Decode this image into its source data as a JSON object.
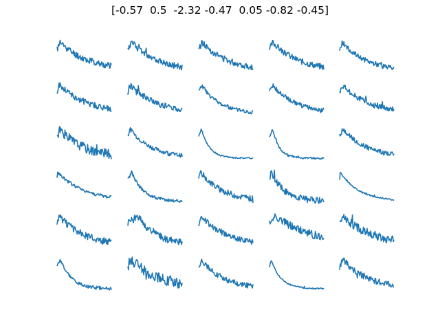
{
  "figure": {
    "title": "[-0.57  0.5  -2.32 -0.47  0.05 -0.82 -0.45]",
    "line_color": "#1f77b4"
  },
  "chart_data": {
    "type": "line",
    "title": "[-0.57  0.5  -2.32 -0.47  0.05 -0.82 -0.45]",
    "layout": {
      "rows": 6,
      "cols": 5
    },
    "axes": "off",
    "grid": false,
    "legend": "none",
    "ylim": [
      0,
      1
    ],
    "points_per_panel": 90,
    "panels": [
      {
        "row": 0,
        "col": 0,
        "noise": 0.1,
        "peak": 0.05,
        "decay": 0.55,
        "seed": 11
      },
      {
        "row": 0,
        "col": 1,
        "noise": 0.09,
        "peak": 0.07,
        "decay": 0.5,
        "seed": 12
      },
      {
        "row": 0,
        "col": 2,
        "noise": 0.09,
        "peak": 0.06,
        "decay": 0.5,
        "seed": 13
      },
      {
        "row": 0,
        "col": 3,
        "noise": 0.09,
        "peak": 0.06,
        "decay": 0.5,
        "seed": 14
      },
      {
        "row": 0,
        "col": 4,
        "noise": 0.07,
        "peak": 0.05,
        "decay": 0.45,
        "seed": 15
      },
      {
        "row": 1,
        "col": 0,
        "noise": 0.09,
        "peak": 0.04,
        "decay": 0.55,
        "seed": 21
      },
      {
        "row": 1,
        "col": 1,
        "noise": 0.09,
        "peak": 0.05,
        "decay": 0.5,
        "seed": 22
      },
      {
        "row": 1,
        "col": 2,
        "noise": 0.06,
        "peak": 0.05,
        "decay": 0.35,
        "seed": 23
      },
      {
        "row": 1,
        "col": 3,
        "noise": 0.07,
        "peak": 0.05,
        "decay": 0.45,
        "seed": 24
      },
      {
        "row": 1,
        "col": 4,
        "noise": 0.08,
        "peak": 0.05,
        "decay": 0.5,
        "seed": 25
      },
      {
        "row": 2,
        "col": 0,
        "noise": 0.14,
        "peak": 0.05,
        "decay": 0.45,
        "seed": 31
      },
      {
        "row": 2,
        "col": 1,
        "noise": 0.06,
        "peak": 0.04,
        "decay": 0.4,
        "seed": 32
      },
      {
        "row": 2,
        "col": 2,
        "noise": 0.02,
        "peak": 0.05,
        "decay": 0.15,
        "seed": 33
      },
      {
        "row": 2,
        "col": 3,
        "noise": 0.03,
        "peak": 0.06,
        "decay": 0.12,
        "seed": 34
      },
      {
        "row": 2,
        "col": 4,
        "noise": 0.07,
        "peak": 0.06,
        "decay": 0.45,
        "seed": 35
      },
      {
        "row": 3,
        "col": 0,
        "noise": 0.05,
        "peak": 0.01,
        "decay": 0.5,
        "seed": 41
      },
      {
        "row": 3,
        "col": 1,
        "noise": 0.05,
        "peak": 0.07,
        "decay": 0.22,
        "seed": 42
      },
      {
        "row": 3,
        "col": 2,
        "noise": 0.09,
        "peak": 0.04,
        "decay": 0.4,
        "seed": 43
      },
      {
        "row": 3,
        "col": 3,
        "noise": 0.1,
        "peak": 0.03,
        "decay": 0.25,
        "seed": 44
      },
      {
        "row": 3,
        "col": 4,
        "noise": 0.02,
        "peak": 0.01,
        "decay": 0.35,
        "seed": 45
      },
      {
        "row": 4,
        "col": 0,
        "noise": 0.1,
        "peak": 0.04,
        "decay": 0.45,
        "seed": 51
      },
      {
        "row": 4,
        "col": 1,
        "noise": 0.1,
        "peak": 0.18,
        "decay": 0.35,
        "seed": 52
      },
      {
        "row": 4,
        "col": 2,
        "noise": 0.08,
        "peak": 0.05,
        "decay": 0.45,
        "seed": 53
      },
      {
        "row": 4,
        "col": 3,
        "noise": 0.12,
        "peak": 0.1,
        "decay": 0.7,
        "seed": 54
      },
      {
        "row": 4,
        "col": 4,
        "noise": 0.12,
        "peak": 0.06,
        "decay": 0.55,
        "seed": 55
      },
      {
        "row": 5,
        "col": 0,
        "noise": 0.05,
        "peak": 0.06,
        "decay": 0.2,
        "seed": 61
      },
      {
        "row": 5,
        "col": 1,
        "noise": 0.16,
        "peak": 0.05,
        "decay": 0.55,
        "seed": 62
      },
      {
        "row": 5,
        "col": 2,
        "noise": 0.08,
        "peak": 0.05,
        "decay": 0.4,
        "seed": 63
      },
      {
        "row": 5,
        "col": 3,
        "noise": 0.02,
        "peak": 0.03,
        "decay": 0.18,
        "seed": 64
      },
      {
        "row": 5,
        "col": 4,
        "noise": 0.1,
        "peak": 0.06,
        "decay": 0.45,
        "seed": 65
      }
    ]
  }
}
